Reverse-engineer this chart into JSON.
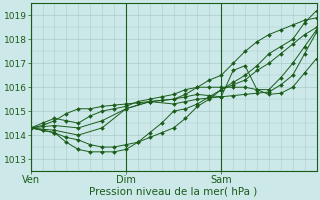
{
  "title": "",
  "xlabel": "Pression niveau de la mer( hPa )",
  "bg_color": "#cce8e8",
  "grid_color_major": "#99bbbb",
  "grid_color_minor": "#aacccc",
  "line_color": "#1a5c1a",
  "ylim": [
    1012.5,
    1019.5
  ],
  "xlim": [
    0,
    96
  ],
  "xticks": [
    0,
    32,
    64
  ],
  "xticklabels": [
    "Ven",
    "Dim",
    "Sam"
  ],
  "yticks": [
    1013,
    1014,
    1015,
    1016,
    1017,
    1018,
    1019
  ],
  "series": [
    [
      0,
      1014.3,
      4,
      1014.5,
      8,
      1014.7,
      12,
      1014.6,
      16,
      1014.5,
      20,
      1014.8,
      24,
      1015.0,
      28,
      1015.1,
      32,
      1015.2,
      36,
      1015.4,
      40,
      1015.5,
      44,
      1015.6,
      48,
      1015.7,
      52,
      1015.9,
      56,
      1016.0,
      60,
      1016.3,
      64,
      1016.5,
      68,
      1017.0,
      72,
      1017.5,
      76,
      1017.9,
      80,
      1018.2,
      84,
      1018.4,
      88,
      1018.6,
      92,
      1018.8,
      96,
      1018.9
    ],
    [
      0,
      1014.3,
      4,
      1014.2,
      8,
      1014.1,
      12,
      1013.9,
      16,
      1013.8,
      20,
      1013.6,
      24,
      1013.5,
      28,
      1013.5,
      32,
      1013.6,
      36,
      1013.7,
      40,
      1013.9,
      44,
      1014.1,
      48,
      1014.3,
      52,
      1014.7,
      56,
      1015.2,
      60,
      1015.5,
      64,
      1015.9,
      68,
      1016.1,
      72,
      1016.3,
      76,
      1016.7,
      80,
      1017.0,
      84,
      1017.4,
      88,
      1017.8,
      92,
      1018.2,
      96,
      1018.5
    ],
    [
      0,
      1014.3,
      4,
      1014.2,
      8,
      1014.1,
      12,
      1013.7,
      16,
      1013.4,
      20,
      1013.3,
      24,
      1013.3,
      28,
      1013.3,
      32,
      1013.4,
      36,
      1013.7,
      40,
      1014.1,
      44,
      1014.5,
      48,
      1015.0,
      52,
      1015.1,
      56,
      1015.3,
      60,
      1015.6,
      64,
      1015.9,
      68,
      1016.2,
      72,
      1016.5,
      76,
      1016.9,
      80,
      1017.4,
      84,
      1017.7,
      88,
      1018.0,
      92,
      1018.7,
      96,
      1019.2
    ],
    [
      0,
      1014.3,
      4,
      1014.4,
      8,
      1014.6,
      12,
      1014.9,
      16,
      1015.1,
      20,
      1015.1,
      24,
      1015.2,
      28,
      1015.25,
      32,
      1015.3,
      36,
      1015.35,
      40,
      1015.4,
      44,
      1015.45,
      48,
      1015.5,
      52,
      1015.7,
      56,
      1016.0,
      60,
      1016.0,
      64,
      1016.0,
      68,
      1016.0,
      72,
      1016.0,
      76,
      1015.9,
      80,
      1015.9,
      84,
      1016.4,
      88,
      1017.0,
      92,
      1017.7,
      96,
      1018.4
    ],
    [
      0,
      1014.3,
      8,
      1014.2,
      16,
      1014.0,
      24,
      1014.3,
      32,
      1015.1,
      40,
      1015.4,
      48,
      1015.3,
      52,
      1015.4,
      56,
      1015.5,
      60,
      1015.55,
      64,
      1015.6,
      68,
      1016.7,
      72,
      1016.9,
      76,
      1015.9,
      80,
      1015.7,
      84,
      1015.75,
      88,
      1016.0,
      92,
      1016.6,
      96,
      1017.2
    ],
    [
      0,
      1014.3,
      8,
      1014.4,
      16,
      1014.3,
      24,
      1014.6,
      32,
      1015.1,
      40,
      1015.4,
      48,
      1015.5,
      52,
      1015.6,
      56,
      1015.7,
      60,
      1015.65,
      64,
      1015.6,
      68,
      1015.65,
      72,
      1015.7,
      76,
      1015.75,
      80,
      1015.8,
      84,
      1016.1,
      88,
      1016.5,
      92,
      1017.4,
      96,
      1018.3
    ]
  ]
}
